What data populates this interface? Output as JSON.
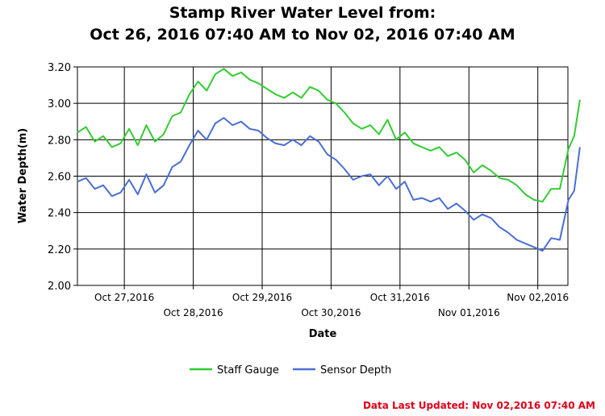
{
  "chart_data": {
    "type": "line",
    "title_line1": "Stamp River Water Level from:",
    "title_line2": "Oct 26, 2016 07:40 AM to Nov 02, 2016 07:40 AM",
    "xlabel": "Date",
    "ylabel": "Water Depth(m)",
    "ylim": [
      2.0,
      3.2
    ],
    "yticks": [
      "3.20",
      "3.00",
      "2.80",
      "2.60",
      "2.40",
      "2.20",
      "2.00"
    ],
    "xlim": [
      "2016-10-26 07:40",
      "2016-11-02 07:40"
    ],
    "xticks": [
      {
        "label": "Oct 27,2016",
        "date": "2016-10-27",
        "row": 1
      },
      {
        "label": "Oct 28,2016",
        "date": "2016-10-28",
        "row": 2
      },
      {
        "label": "Oct 29,2016",
        "date": "2016-10-29",
        "row": 1
      },
      {
        "label": "Oct 30,2016",
        "date": "2016-10-30",
        "row": 2
      },
      {
        "label": "Oct 31,2016",
        "date": "2016-10-31",
        "row": 1
      },
      {
        "label": "Nov 01,2016",
        "date": "2016-11-01",
        "row": 2
      },
      {
        "label": "Nov 02,2016",
        "date": "2016-11-02",
        "row": 1
      }
    ],
    "grid": true,
    "legend_position": "bottom",
    "series": [
      {
        "name": "Staff Gauge",
        "color": "#33cc33",
        "points": [
          [
            "2016-10-26 07:40",
            2.84
          ],
          [
            "2016-10-26 10:40",
            2.87
          ],
          [
            "2016-10-26 13:40",
            2.79
          ],
          [
            "2016-10-26 16:40",
            2.82
          ],
          [
            "2016-10-26 19:40",
            2.76
          ],
          [
            "2016-10-26 22:40",
            2.78
          ],
          [
            "2016-10-27 01:40",
            2.86
          ],
          [
            "2016-10-27 04:40",
            2.77
          ],
          [
            "2016-10-27 07:40",
            2.88
          ],
          [
            "2016-10-27 10:40",
            2.79
          ],
          [
            "2016-10-27 13:40",
            2.83
          ],
          [
            "2016-10-27 16:40",
            2.93
          ],
          [
            "2016-10-27 19:40",
            2.95
          ],
          [
            "2016-10-27 22:40",
            3.05
          ],
          [
            "2016-10-28 01:40",
            3.12
          ],
          [
            "2016-10-28 04:40",
            3.07
          ],
          [
            "2016-10-28 07:40",
            3.16
          ],
          [
            "2016-10-28 10:40",
            3.19
          ],
          [
            "2016-10-28 13:40",
            3.15
          ],
          [
            "2016-10-28 16:40",
            3.17
          ],
          [
            "2016-10-28 19:40",
            3.13
          ],
          [
            "2016-10-28 22:40",
            3.11
          ],
          [
            "2016-10-29 01:40",
            3.08
          ],
          [
            "2016-10-29 04:40",
            3.05
          ],
          [
            "2016-10-29 07:40",
            3.03
          ],
          [
            "2016-10-29 10:40",
            3.06
          ],
          [
            "2016-10-29 13:40",
            3.03
          ],
          [
            "2016-10-29 16:40",
            3.09
          ],
          [
            "2016-10-29 19:40",
            3.07
          ],
          [
            "2016-10-29 22:40",
            3.02
          ],
          [
            "2016-10-30 01:40",
            3.0
          ],
          [
            "2016-10-30 04:40",
            2.95
          ],
          [
            "2016-10-30 07:40",
            2.89
          ],
          [
            "2016-10-30 10:40",
            2.86
          ],
          [
            "2016-10-30 13:40",
            2.88
          ],
          [
            "2016-10-30 16:40",
            2.83
          ],
          [
            "2016-10-30 19:40",
            2.91
          ],
          [
            "2016-10-30 22:40",
            2.8
          ],
          [
            "2016-10-31 01:40",
            2.84
          ],
          [
            "2016-10-31 04:40",
            2.78
          ],
          [
            "2016-10-31 07:40",
            2.76
          ],
          [
            "2016-10-31 10:40",
            2.74
          ],
          [
            "2016-10-31 13:40",
            2.76
          ],
          [
            "2016-10-31 16:40",
            2.71
          ],
          [
            "2016-10-31 19:40",
            2.73
          ],
          [
            "2016-10-31 22:40",
            2.69
          ],
          [
            "2016-11-01 01:40",
            2.62
          ],
          [
            "2016-11-01 04:40",
            2.66
          ],
          [
            "2016-11-01 07:40",
            2.63
          ],
          [
            "2016-11-01 10:40",
            2.59
          ],
          [
            "2016-11-01 13:40",
            2.58
          ],
          [
            "2016-11-01 16:40",
            2.55
          ],
          [
            "2016-11-01 19:40",
            2.5
          ],
          [
            "2016-11-01 22:40",
            2.47
          ],
          [
            "2016-11-02 01:40",
            2.46
          ],
          [
            "2016-11-02 04:40",
            2.53
          ],
          [
            "2016-11-02 07:40",
            2.53
          ]
        ],
        "extra_after_end": [
          [
            "2016-11-02 10:40",
            2.75
          ],
          [
            "2016-11-02 12:40",
            2.82
          ],
          [
            "2016-11-02 14:40",
            3.02
          ]
        ]
      },
      {
        "name": "Sensor Depth",
        "color": "#4a6fd4",
        "points": [
          [
            "2016-10-26 07:40",
            2.57
          ],
          [
            "2016-10-26 10:40",
            2.59
          ],
          [
            "2016-10-26 13:40",
            2.53
          ],
          [
            "2016-10-26 16:40",
            2.55
          ],
          [
            "2016-10-26 19:40",
            2.49
          ],
          [
            "2016-10-26 22:40",
            2.51
          ],
          [
            "2016-10-27 01:40",
            2.58
          ],
          [
            "2016-10-27 04:40",
            2.5
          ],
          [
            "2016-10-27 07:40",
            2.61
          ],
          [
            "2016-10-27 10:40",
            2.51
          ],
          [
            "2016-10-27 13:40",
            2.55
          ],
          [
            "2016-10-27 16:40",
            2.65
          ],
          [
            "2016-10-27 19:40",
            2.68
          ],
          [
            "2016-10-27 22:40",
            2.77
          ],
          [
            "2016-10-28 01:40",
            2.85
          ],
          [
            "2016-10-28 04:40",
            2.8
          ],
          [
            "2016-10-28 07:40",
            2.89
          ],
          [
            "2016-10-28 10:40",
            2.92
          ],
          [
            "2016-10-28 13:40",
            2.88
          ],
          [
            "2016-10-28 16:40",
            2.9
          ],
          [
            "2016-10-28 19:40",
            2.86
          ],
          [
            "2016-10-28 22:40",
            2.85
          ],
          [
            "2016-10-29 01:40",
            2.81
          ],
          [
            "2016-10-29 04:40",
            2.78
          ],
          [
            "2016-10-29 07:40",
            2.77
          ],
          [
            "2016-10-29 10:40",
            2.8
          ],
          [
            "2016-10-29 13:40",
            2.77
          ],
          [
            "2016-10-29 16:40",
            2.82
          ],
          [
            "2016-10-29 19:40",
            2.79
          ],
          [
            "2016-10-29 22:40",
            2.72
          ],
          [
            "2016-10-30 01:40",
            2.69
          ],
          [
            "2016-10-30 04:40",
            2.64
          ],
          [
            "2016-10-30 07:40",
            2.58
          ],
          [
            "2016-10-30 10:40",
            2.6
          ],
          [
            "2016-10-30 13:40",
            2.61
          ],
          [
            "2016-10-30 16:40",
            2.55
          ],
          [
            "2016-10-30 19:40",
            2.6
          ],
          [
            "2016-10-30 22:40",
            2.53
          ],
          [
            "2016-10-31 01:40",
            2.57
          ],
          [
            "2016-10-31 04:40",
            2.47
          ],
          [
            "2016-10-31 07:40",
            2.48
          ],
          [
            "2016-10-31 10:40",
            2.46
          ],
          [
            "2016-10-31 13:40",
            2.48
          ],
          [
            "2016-10-31 16:40",
            2.42
          ],
          [
            "2016-10-31 19:40",
            2.45
          ],
          [
            "2016-10-31 22:40",
            2.41
          ],
          [
            "2016-11-01 01:40",
            2.36
          ],
          [
            "2016-11-01 04:40",
            2.39
          ],
          [
            "2016-11-01 07:40",
            2.37
          ],
          [
            "2016-11-01 10:40",
            2.32
          ],
          [
            "2016-11-01 13:40",
            2.29
          ],
          [
            "2016-11-01 16:40",
            2.25
          ],
          [
            "2016-11-01 19:40",
            2.23
          ],
          [
            "2016-11-01 22:40",
            2.21
          ],
          [
            "2016-11-02 01:40",
            2.19
          ],
          [
            "2016-11-02 04:40",
            2.26
          ],
          [
            "2016-11-02 07:40",
            2.25
          ]
        ],
        "extra_after_end": [
          [
            "2016-11-02 10:40",
            2.47
          ],
          [
            "2016-11-02 12:40",
            2.52
          ],
          [
            "2016-11-02 14:40",
            2.76
          ]
        ]
      }
    ]
  },
  "footer": {
    "last_updated": "Data Last Updated: Nov 02,2016 07:40 AM"
  }
}
